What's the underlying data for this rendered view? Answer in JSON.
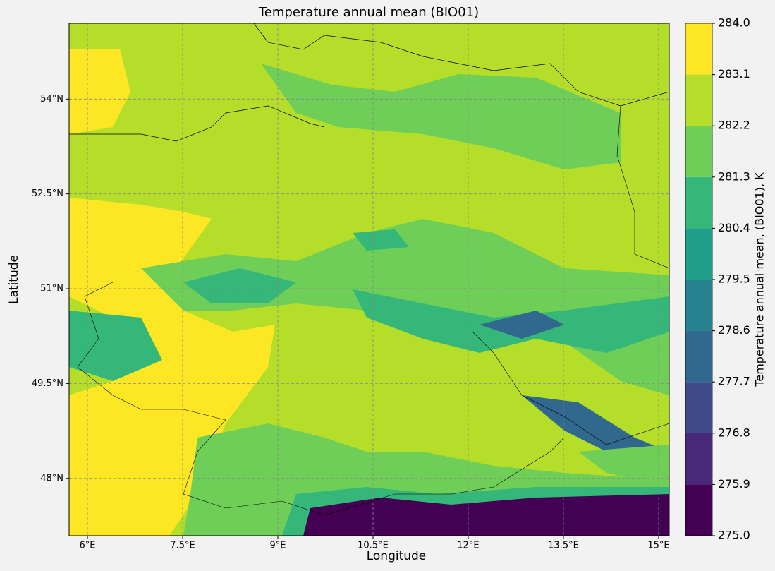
{
  "chart_data": {
    "type": "contourf",
    "title": "Temperature annual mean (BIO01)",
    "xlabel": "Longitude",
    "ylabel": "Latitude",
    "xlim": [
      5.711,
      15.167
    ],
    "ylim": [
      47.093,
      55.198
    ],
    "xticks": [
      {
        "value": 6,
        "label": "6°E"
      },
      {
        "value": 7.5,
        "label": "7.5°E"
      },
      {
        "value": 9,
        "label": "9°E"
      },
      {
        "value": 10.5,
        "label": "10.5°E"
      },
      {
        "value": 12,
        "label": "12°E"
      },
      {
        "value": 13.5,
        "label": "13.5°E"
      },
      {
        "value": 15,
        "label": "15°E"
      }
    ],
    "yticks": [
      {
        "value": 48,
        "label": "48°N"
      },
      {
        "value": 49.5,
        "label": "49.5°N"
      },
      {
        "value": 51,
        "label": "51°N"
      },
      {
        "value": 52.5,
        "label": "52.5°N"
      },
      {
        "value": 54,
        "label": "54°N"
      }
    ],
    "grid": true,
    "colorbar": {
      "label": "Temperature annual mean, (BIO01), K",
      "ticks": [
        {
          "value": 275,
          "label": "275.0"
        },
        275.9,
        276.8,
        277.7,
        278.6,
        279.5,
        280.4,
        281.3,
        282.2,
        283.1,
        {
          "value": 284,
          "label": "284.0"
        }
      ],
      "colors": [
        "#440154",
        "#482878",
        "#3e4989",
        "#31688e",
        "#26828e",
        "#1f9e89",
        "#35b779",
        "#6ece58",
        "#b5de2b",
        "#fde725"
      ]
    }
  }
}
